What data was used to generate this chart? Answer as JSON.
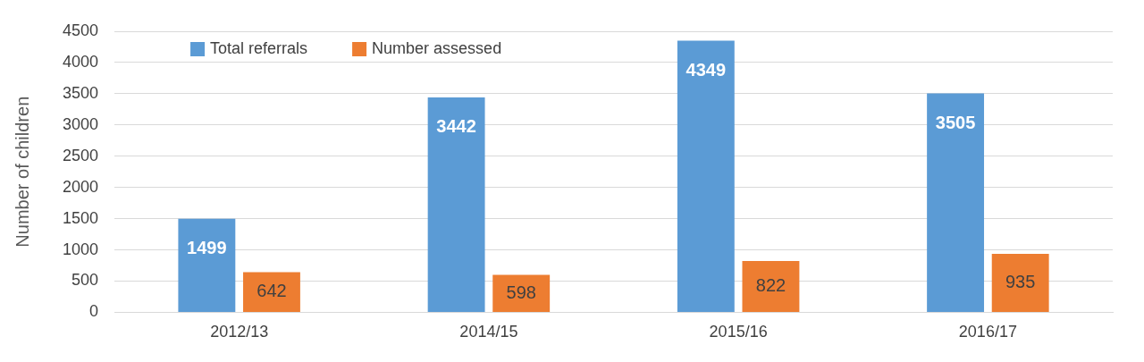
{
  "chart_data": {
    "type": "bar",
    "ylabel": "Number of children",
    "categories": [
      "2012/13",
      "2014/15",
      "2015/16",
      "2016/17"
    ],
    "series": [
      {
        "name": "Total referrals",
        "color": "#5b9bd5",
        "values": [
          1499,
          3442,
          4349,
          3505
        ]
      },
      {
        "name": "Number assessed",
        "color": "#ed7d31",
        "values": [
          642,
          598,
          822,
          935
        ]
      }
    ],
    "ylim": [
      0,
      4500
    ],
    "yticks": [
      0,
      500,
      1000,
      1500,
      2000,
      2500,
      3000,
      3500,
      4000,
      4500
    ],
    "grid": "y",
    "legend": "top left",
    "data_labels": true
  }
}
